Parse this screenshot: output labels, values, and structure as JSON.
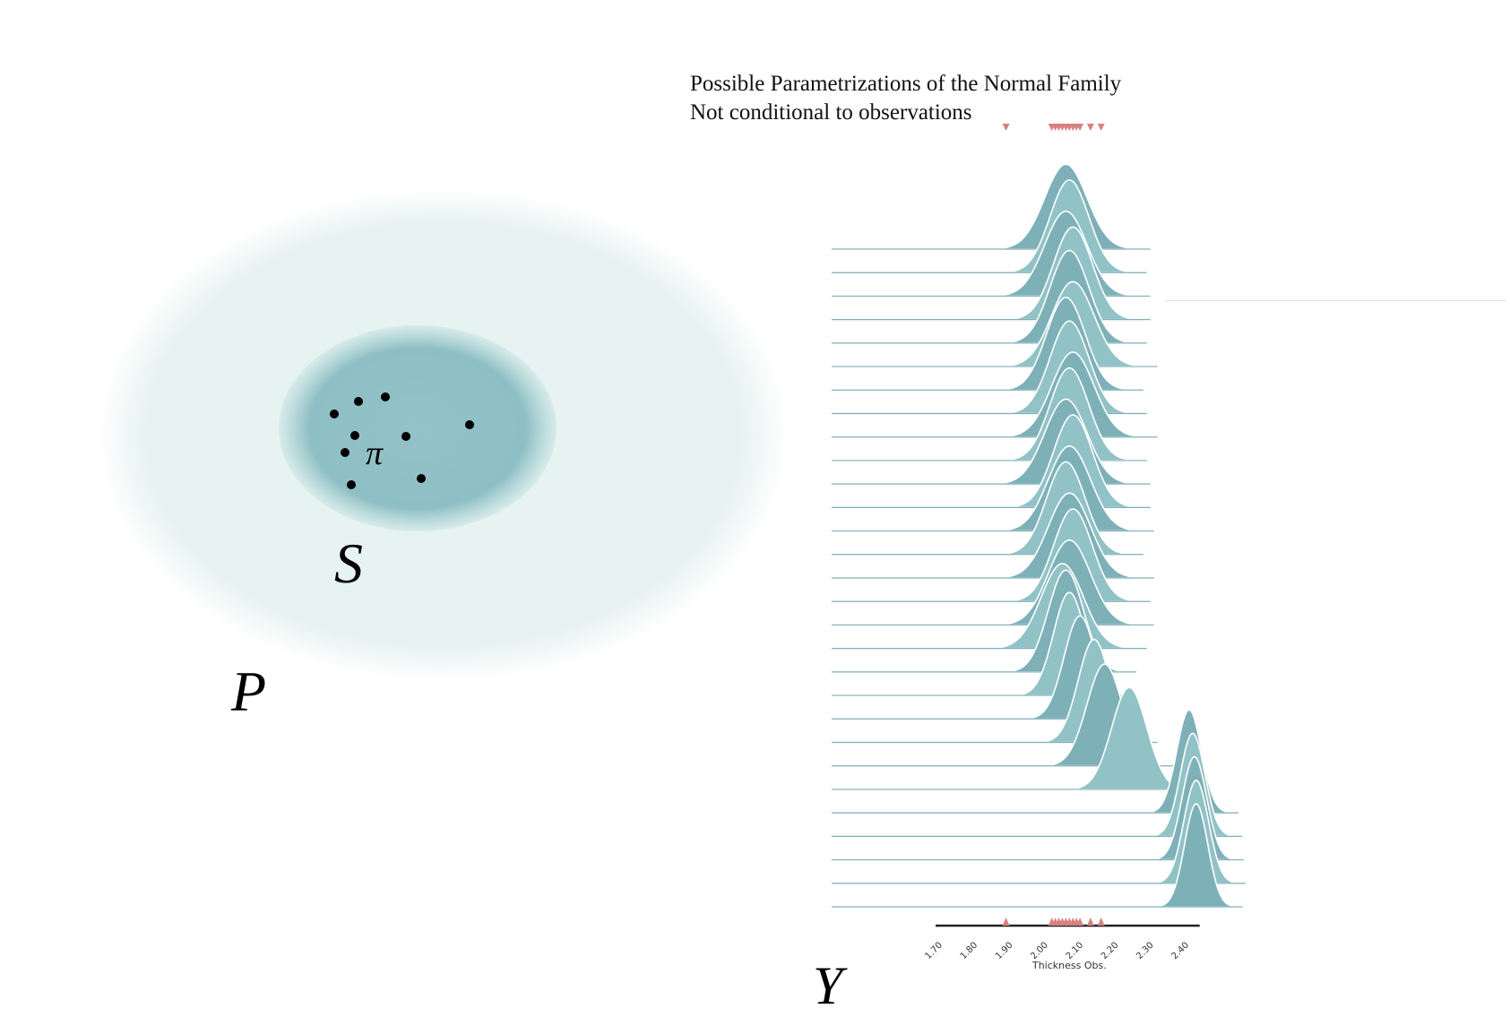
{
  "left_diagram": {
    "outer_set_label": "P",
    "inner_set_label": "S",
    "point_label": "π",
    "colors": {
      "outer": "#e6f3f1",
      "inner": "#8fc1c6",
      "dots": "#000000"
    }
  },
  "right_diagram": {
    "title_line1": "Possible Parametrizations of the Normal Family",
    "title_line2": "Not conditional to observations",
    "space_label": "Y",
    "axis_label": "Thickness Obs.",
    "tick_labels": [
      "1.70",
      "1.80",
      "1.90",
      "2.00",
      "2.10",
      "2.20",
      "2.30",
      "2.40"
    ],
    "ticks": [
      1.7,
      1.8,
      1.9,
      2.0,
      2.1,
      2.2,
      2.3,
      2.4
    ],
    "x_range": [
      1.7,
      2.45
    ],
    "observations": [
      1.9,
      2.03,
      2.04,
      2.05,
      2.06,
      2.07,
      2.08,
      2.09,
      2.1,
      2.11,
      2.14,
      2.17
    ],
    "colors": {
      "ridge_light": "#91c2c6",
      "ridge_dark": "#7eb0b8",
      "marker": "#d98080",
      "axis": "#222222"
    },
    "ridges": [
      {
        "mu": 2.07,
        "sd": 0.06
      },
      {
        "mu": 2.08,
        "sd": 0.055
      },
      {
        "mu": 2.07,
        "sd": 0.06
      },
      {
        "mu": 2.09,
        "sd": 0.055
      },
      {
        "mu": 2.08,
        "sd": 0.055
      },
      {
        "mu": 2.09,
        "sd": 0.06
      },
      {
        "mu": 2.07,
        "sd": 0.055
      },
      {
        "mu": 2.08,
        "sd": 0.055
      },
      {
        "mu": 2.09,
        "sd": 0.06
      },
      {
        "mu": 2.08,
        "sd": 0.055
      },
      {
        "mu": 2.07,
        "sd": 0.06
      },
      {
        "mu": 2.09,
        "sd": 0.055
      },
      {
        "mu": 2.08,
        "sd": 0.06
      },
      {
        "mu": 2.07,
        "sd": 0.055
      },
      {
        "mu": 2.08,
        "sd": 0.06
      },
      {
        "mu": 2.09,
        "sd": 0.055
      },
      {
        "mu": 2.08,
        "sd": 0.06
      },
      {
        "mu": 2.06,
        "sd": 0.06
      },
      {
        "mu": 2.07,
        "sd": 0.05
      },
      {
        "mu": 2.08,
        "sd": 0.045
      },
      {
        "mu": 2.11,
        "sd": 0.045
      },
      {
        "mu": 2.15,
        "sd": 0.045
      },
      {
        "mu": 2.18,
        "sd": 0.05
      },
      {
        "mu": 2.25,
        "sd": 0.05
      },
      {
        "mu": 2.42,
        "sd": 0.035
      },
      {
        "mu": 2.43,
        "sd": 0.035
      },
      {
        "mu": 2.435,
        "sd": 0.035
      },
      {
        "mu": 2.44,
        "sd": 0.035
      },
      {
        "mu": 2.44,
        "sd": 0.033
      }
    ]
  }
}
